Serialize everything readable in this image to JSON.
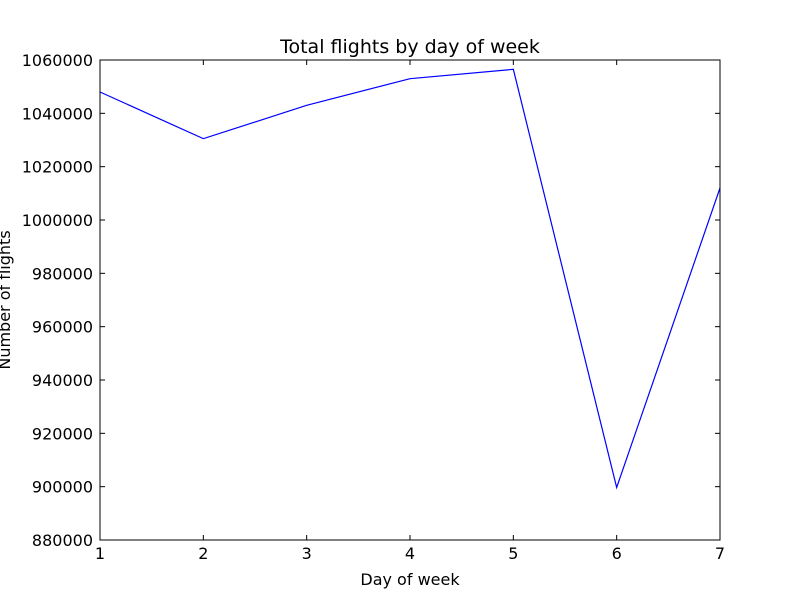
{
  "chart_data": {
    "type": "line",
    "title": "Total flights by day of week",
    "xlabel": "Day of week",
    "ylabel": "Number of flights",
    "xlim": [
      1,
      7
    ],
    "ylim": [
      880000,
      1060000
    ],
    "xticks": [
      "1",
      "2",
      "3",
      "4",
      "5",
      "6",
      "7"
    ],
    "yticks": [
      "880000",
      "900000",
      "920000",
      "940000",
      "960000",
      "980000",
      "1000000",
      "1020000",
      "1040000",
      "1060000"
    ],
    "grid": false,
    "series": [
      {
        "color": "#0000ff",
        "x": [
          1,
          2,
          3,
          4,
          5,
          6,
          7
        ],
        "y": [
          1048000,
          1030500,
          1043000,
          1053000,
          1056500,
          899700,
          1012000
        ]
      }
    ]
  }
}
